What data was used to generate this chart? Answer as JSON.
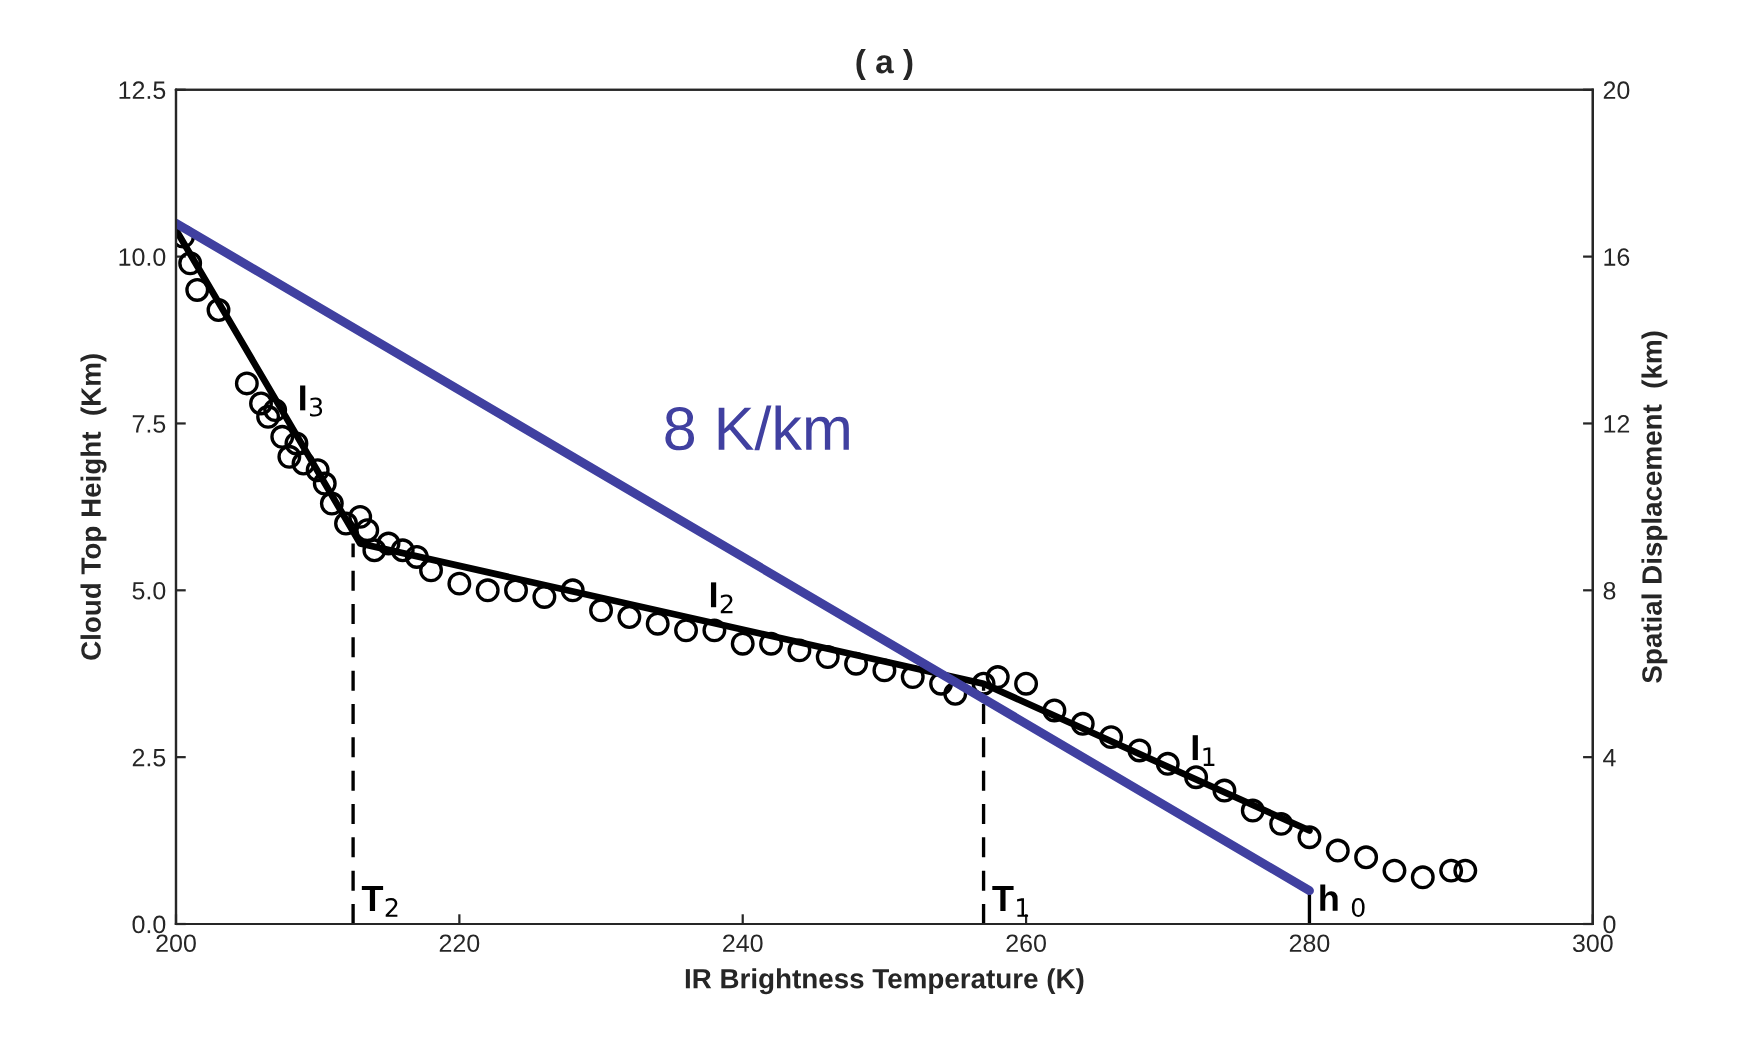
{
  "chart_data": {
    "type": "scatter",
    "title": "( a )",
    "xlabel": "IR Brightness Temperature (K)",
    "ylabel": "Cloud Top Height  (Km)",
    "y2label": "Spatial Displacement  (km)",
    "xlim": [
      200,
      300
    ],
    "xticks": [
      200,
      220,
      240,
      260,
      280,
      300
    ],
    "ylim": [
      0,
      12.5
    ],
    "yticks": [
      {
        "value": 0,
        "label": "0.0"
      },
      2.5,
      {
        "value": 5,
        "label": "5.0"
      },
      7.5,
      {
        "value": 10,
        "label": "10.0"
      },
      12.5
    ],
    "y2lim": [
      0,
      20
    ],
    "y2ticks": [
      0,
      4,
      8,
      12,
      16,
      20
    ],
    "grid": false,
    "legend": false,
    "series": [
      {
        "marker": "circle",
        "color": "#000000",
        "x": [
          200.5,
          201,
          201.5,
          203,
          205,
          206,
          206.5,
          207,
          207.5,
          208,
          208.5,
          209,
          210,
          210.5,
          211,
          212,
          213,
          213.5,
          214,
          215,
          216,
          217,
          218,
          220,
          222,
          224,
          226,
          228,
          230,
          232,
          234,
          236,
          238,
          240,
          242,
          244,
          246,
          248,
          250,
          252,
          254,
          255,
          257,
          258,
          260,
          262,
          264,
          266,
          268,
          270,
          272,
          274,
          276,
          278,
          280,
          282,
          284,
          286,
          288,
          290,
          291
        ],
        "values": [
          10.3,
          9.9,
          9.5,
          9.2,
          8.1,
          7.8,
          7.6,
          7.7,
          7.3,
          7.0,
          7.2,
          6.9,
          6.8,
          6.6,
          6.3,
          6.0,
          6.1,
          5.9,
          5.6,
          5.7,
          5.6,
          5.5,
          5.3,
          5.1,
          5.0,
          5.0,
          4.9,
          5.0,
          4.7,
          4.6,
          4.5,
          4.4,
          4.4,
          4.2,
          4.2,
          4.1,
          4.0,
          3.9,
          3.8,
          3.7,
          3.6,
          3.45,
          3.6,
          3.7,
          3.6,
          3.2,
          3.0,
          2.8,
          2.6,
          2.4,
          2.2,
          2.0,
          1.7,
          1.5,
          1.3,
          1.1,
          1.0,
          0.8,
          0.7,
          0.8,
          0.8
        ]
      },
      {
        "type": "line",
        "marker": "none",
        "color": "#000000",
        "line_style": "solid",
        "x": [
          200,
          213,
          257,
          280
        ],
        "values": [
          10.4,
          5.7,
          3.6,
          1.4
        ]
      },
      {
        "type": "line",
        "marker": "none",
        "color": "#000000",
        "line_style": "dashed",
        "x": [
          212.5,
          212.5
        ],
        "values": [
          0,
          5.7
        ]
      },
      {
        "type": "line",
        "marker": "none",
        "color": "#000000",
        "line_style": "dashed",
        "x": [
          257,
          257
        ],
        "values": [
          0,
          3.6
        ]
      },
      {
        "type": "line",
        "marker": "none",
        "color": "#000000",
        "line_style": "solid",
        "x": [
          280,
          280
        ],
        "values": [
          0,
          0.5
        ]
      },
      {
        "type": "line",
        "marker": "none",
        "color": "#4040a0",
        "line_style": "solid",
        "x": [
          200,
          280
        ],
        "values": [
          10.5,
          0.5
        ]
      }
    ],
    "annotations": [
      {
        "text": "I$_{3}$",
        "x": 208,
        "y": 7.5
      },
      {
        "text": "I$_{2}$",
        "x": 237,
        "y": 4.55
      },
      {
        "text": "I$_{1}$",
        "x": 271,
        "y": 2.26
      },
      {
        "text": "T$_{2}$",
        "x": 212.5,
        "y": 0
      },
      {
        "text": "T$_{1}$",
        "x": 257,
        "y": 0
      },
      {
        "text": "h $_{0}$",
        "x": 280,
        "y": 0
      },
      {
        "text": "8 K/km",
        "x": 232,
        "y": 6.5
      }
    ]
  }
}
